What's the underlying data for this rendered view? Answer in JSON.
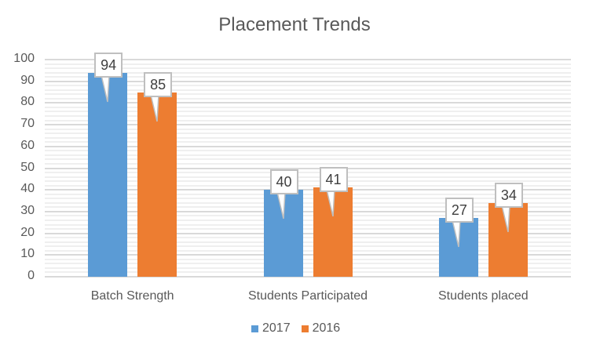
{
  "chart_data": {
    "type": "bar",
    "title": "Placement Trends",
    "categories": [
      "Batch Strength",
      "Students Participated",
      "Students placed"
    ],
    "series": [
      {
        "name": "2017",
        "color": "#5b9bd5",
        "values": [
          94,
          40,
          27
        ]
      },
      {
        "name": "2016",
        "color": "#ed7d31",
        "values": [
          85,
          41,
          34
        ]
      }
    ],
    "xlabel": "",
    "ylabel": "",
    "ylim": [
      0,
      100
    ],
    "yticks": [
      0,
      10,
      20,
      30,
      40,
      50,
      60,
      70,
      80,
      90,
      100
    ],
    "grid": {
      "major": true,
      "minor": true
    },
    "legend_position": "bottom",
    "data_labels": "callout"
  }
}
